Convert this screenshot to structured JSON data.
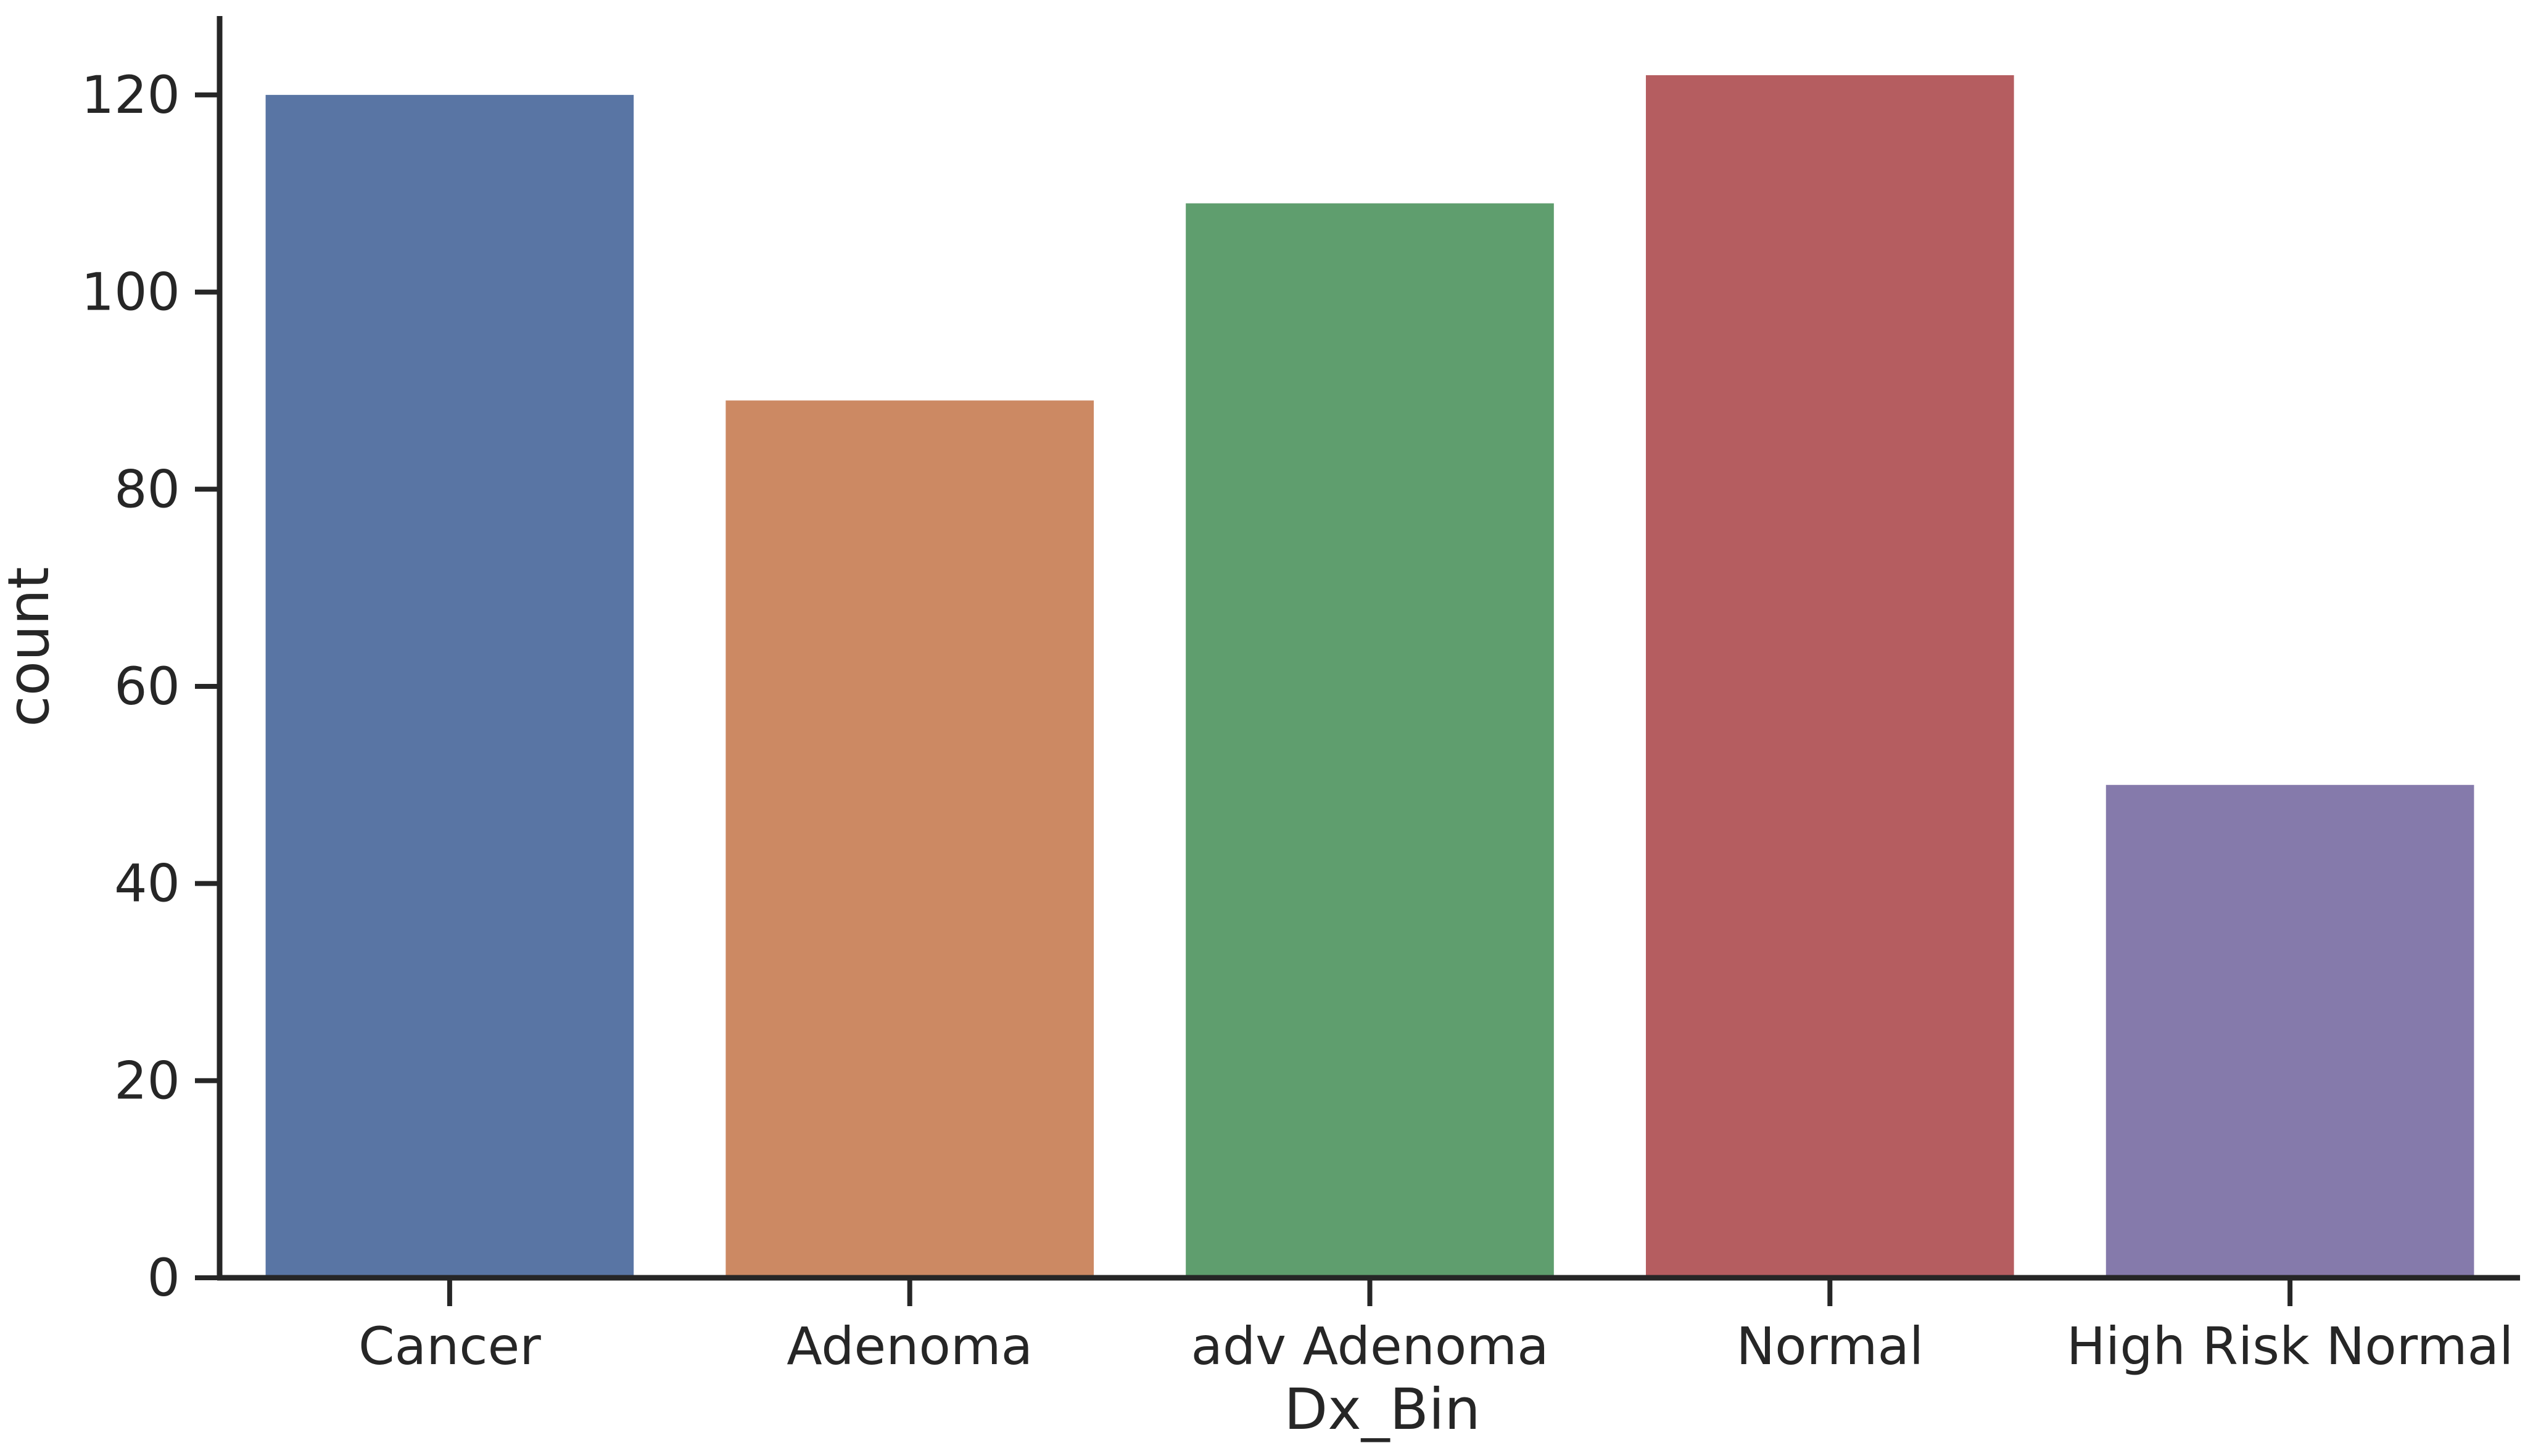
{
  "chart_data": {
    "type": "bar",
    "xlabel": "Dx_Bin",
    "ylabel": "count",
    "categories": [
      "Cancer",
      "Adenoma",
      "adv Adenoma",
      "Normal",
      "High Risk Normal"
    ],
    "values": [
      120,
      89,
      109,
      122,
      50
    ],
    "colors": [
      "#5975a4",
      "#cc8963",
      "#5f9e6e",
      "#b55d60",
      "#857aab"
    ],
    "ylim": [
      0,
      128
    ],
    "yticks": [
      0,
      20,
      40,
      60,
      80,
      100,
      120
    ],
    "grid": false,
    "legend": "none",
    "axis_color": "#262626"
  }
}
